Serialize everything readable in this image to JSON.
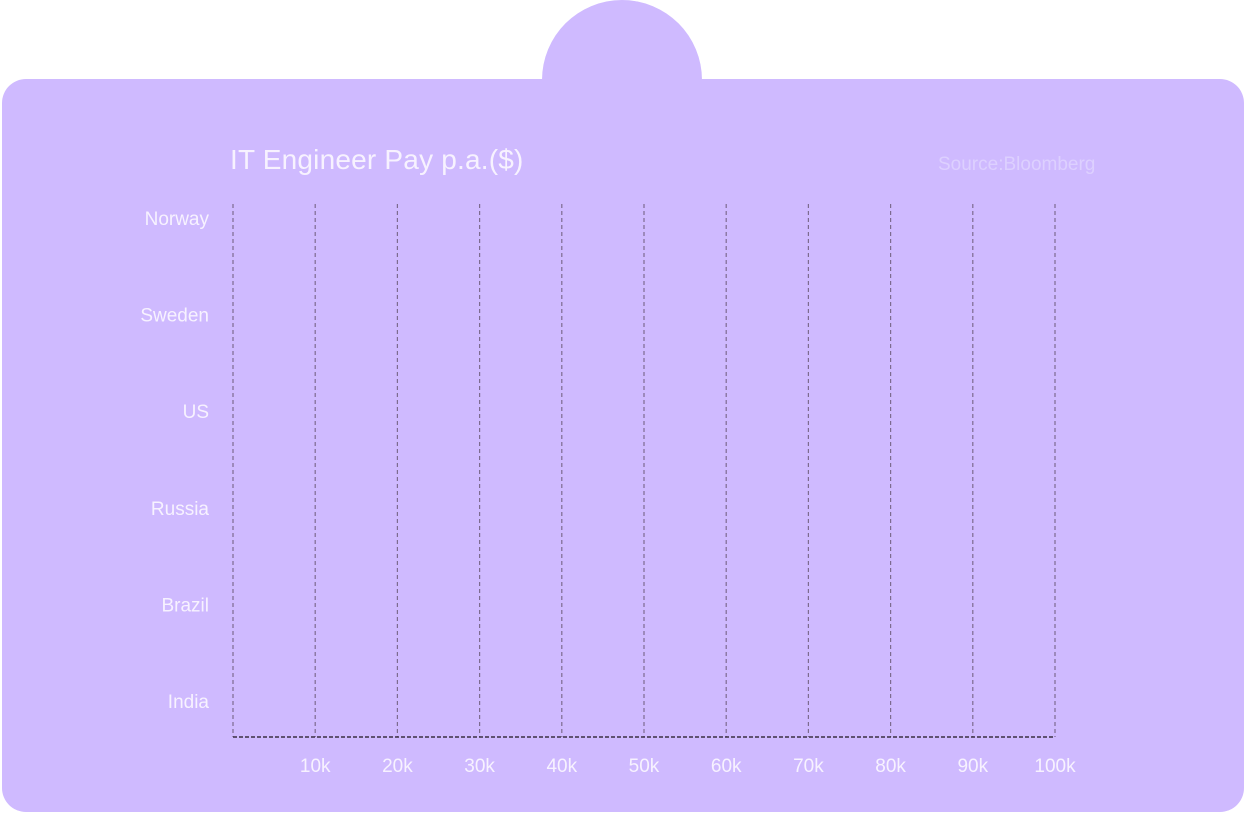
{
  "colors": {
    "card": "#cfbaff",
    "label_text": "#f7f2ff",
    "source_text": "#ddd0ff",
    "grid": "#7d6b8f",
    "axis": "#3a3042"
  },
  "header": {
    "title": "IT Engineer Pay p.a.($)",
    "source": "Source:Bloomberg"
  },
  "chart_data": {
    "type": "bar",
    "orientation": "horizontal",
    "title": "IT Engineer Pay p.a.($)",
    "categories": [
      "Norway",
      "Sweden",
      "US",
      "Russia",
      "Brazil",
      "India"
    ],
    "x_ticks": [
      {
        "value": 10000,
        "label": "10k"
      },
      {
        "value": 20000,
        "label": "20k"
      },
      {
        "value": 30000,
        "label": "30k"
      },
      {
        "value": 40000,
        "label": "40k"
      },
      {
        "value": 50000,
        "label": "50k"
      },
      {
        "value": 60000,
        "label": "60k"
      },
      {
        "value": 70000,
        "label": "70k"
      },
      {
        "value": 80000,
        "label": "80k"
      },
      {
        "value": 90000,
        "label": "90k"
      },
      {
        "value": 100000,
        "label": "100k"
      }
    ],
    "xlim": [
      0,
      100000
    ],
    "grid": true,
    "series": []
  }
}
